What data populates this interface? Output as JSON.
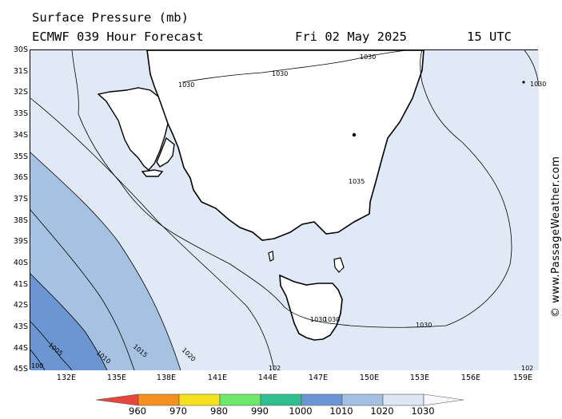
{
  "header": {
    "title": "Surface Pressure (mb)",
    "subtitle": "ECMWF 039 Hour Forecast",
    "date": "Fri 02 May 2025",
    "time": "15 UTC"
  },
  "watermark": "© www.PassageWeather.com",
  "axes": {
    "latitudes": [
      "30S",
      "31S",
      "32S",
      "33S",
      "34S",
      "35S",
      "36S",
      "37S",
      "38S",
      "39S",
      "40S",
      "41S",
      "42S",
      "43S",
      "44S",
      "45S"
    ],
    "longitudes": [
      "132E",
      "135E",
      "138E",
      "141E",
      "144E",
      "147E",
      "150E",
      "153E",
      "156E",
      "159E"
    ]
  },
  "isobar_labels": [
    "1030",
    "1030",
    "1030",
    "1035",
    "1030",
    "1030",
    "1030",
    "1030",
    "1005",
    "1010",
    "1015",
    "1020",
    "100",
    "102",
    "102"
  ],
  "legend": {
    "values": [
      "960",
      "970",
      "980",
      "990",
      "1000",
      "1010",
      "1020",
      "1030"
    ],
    "colors": [
      "#e8463a",
      "#f5901e",
      "#f5e11e",
      "#6ee86a",
      "#2fbf8f",
      "#6a96d4",
      "#a4c0e2",
      "#dce6f4"
    ]
  },
  "colors": {
    "land": "#ffffff",
    "sea_1030": "#e0e9f6",
    "sea_1020": "#a6c1e2",
    "sea_1010": "#6b96d2"
  }
}
